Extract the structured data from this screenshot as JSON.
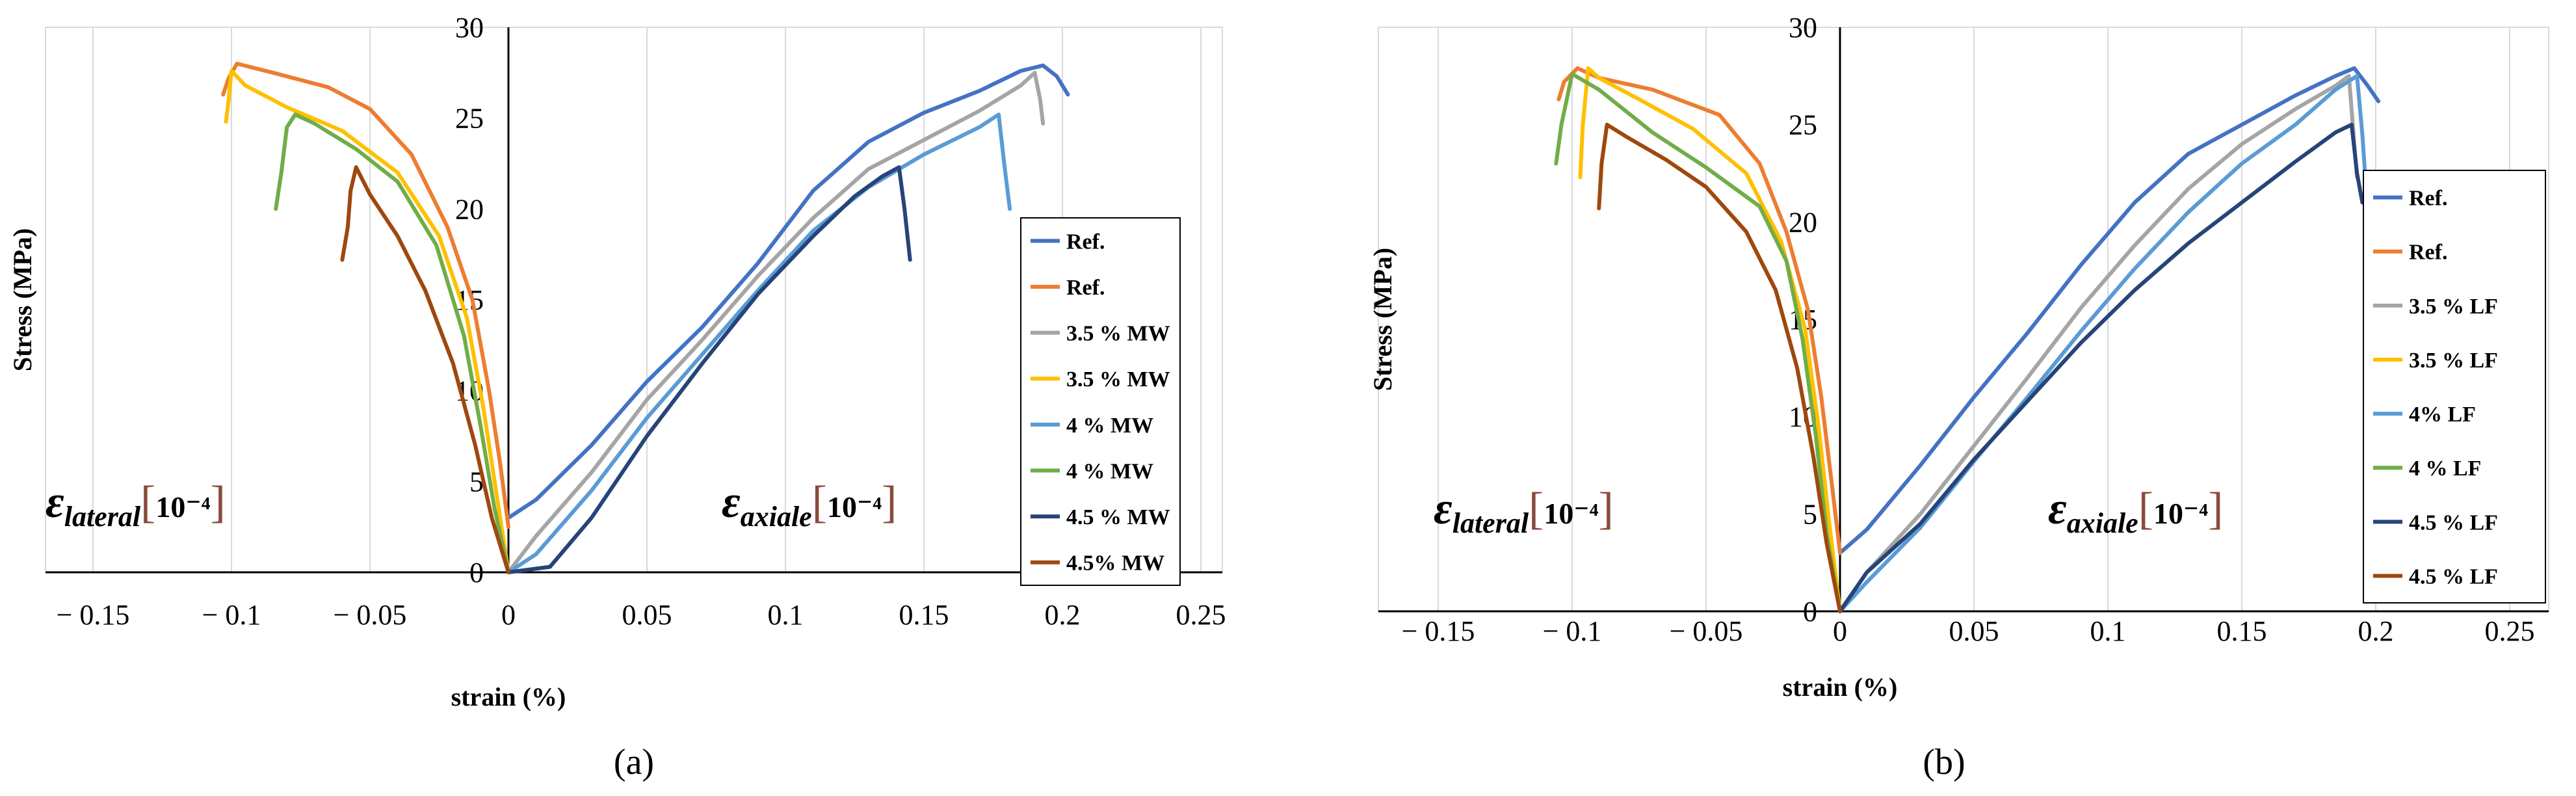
{
  "chart_data": [
    {
      "panel": "(a)",
      "type": "line",
      "xlabel": "strain (%)",
      "ylabel": "Stress (MPa)",
      "xlim": [
        -0.15,
        0.25
      ],
      "ylim": [
        0,
        30
      ],
      "x_ticks": [
        "− 0.15",
        "− 0.1",
        "− 0.05",
        "0",
        "0.05",
        "0.1",
        "0.15",
        "0.2",
        "0.25"
      ],
      "x_tick_values": [
        -0.15,
        -0.1,
        -0.05,
        0,
        0.05,
        0.1,
        0.15,
        0.2,
        0.25
      ],
      "y_ticks": [
        0,
        5,
        10,
        15,
        20,
        25,
        30
      ],
      "grid": "vertical",
      "annotations": {
        "lateral": {
          "symbol": "ε",
          "sub": "lateral",
          "exponent": "10⁻⁴",
          "lb": "[",
          "rb": "]"
        },
        "axial": {
          "symbol": "ε",
          "sub": "axiale",
          "exponent": "10⁻⁴",
          "lb": "[",
          "rb": "]"
        }
      },
      "legend_position": "right",
      "series": [
        {
          "name": "Ref.",
          "color": "#4472c4",
          "points": [
            [
              0.0,
              3.0
            ],
            [
              0.01,
              4.0
            ],
            [
              0.03,
              7.0
            ],
            [
              0.05,
              10.5
            ],
            [
              0.07,
              13.5
            ],
            [
              0.09,
              17.0
            ],
            [
              0.11,
              21.0
            ],
            [
              0.13,
              23.7
            ],
            [
              0.15,
              25.3
            ],
            [
              0.17,
              26.5
            ],
            [
              0.185,
              27.6
            ],
            [
              0.193,
              27.9
            ],
            [
              0.198,
              27.3
            ],
            [
              0.202,
              26.3
            ]
          ]
        },
        {
          "name": "Ref.",
          "color": "#ed7d31",
          "points": [
            [
              0.0,
              2.5
            ],
            [
              -0.003,
              6.0
            ],
            [
              -0.007,
              10.0
            ],
            [
              -0.013,
              15.0
            ],
            [
              -0.022,
              19.0
            ],
            [
              -0.035,
              23.0
            ],
            [
              -0.05,
              25.5
            ],
            [
              -0.065,
              26.7
            ],
            [
              -0.085,
              27.5
            ],
            [
              -0.098,
              28.0
            ],
            [
              -0.101,
              27.2
            ],
            [
              -0.103,
              26.3
            ]
          ]
        },
        {
          "name": "3.5 % MW",
          "color": "#a5a5a5",
          "points": [
            [
              0.0,
              0.0
            ],
            [
              0.01,
              2.0
            ],
            [
              0.03,
              5.5
            ],
            [
              0.05,
              9.5
            ],
            [
              0.07,
              12.8
            ],
            [
              0.09,
              16.3
            ],
            [
              0.11,
              19.5
            ],
            [
              0.13,
              22.2
            ],
            [
              0.15,
              23.8
            ],
            [
              0.17,
              25.4
            ],
            [
              0.185,
              26.8
            ],
            [
              0.19,
              27.5
            ],
            [
              0.192,
              26.0
            ],
            [
              0.193,
              24.7
            ]
          ]
        },
        {
          "name": "3.5 % MW",
          "color": "#ffc000",
          "points": [
            [
              0.0,
              0.0
            ],
            [
              -0.004,
              4.0
            ],
            [
              -0.009,
              9.0
            ],
            [
              -0.015,
              14.0
            ],
            [
              -0.025,
              18.5
            ],
            [
              -0.04,
              22.0
            ],
            [
              -0.06,
              24.3
            ],
            [
              -0.08,
              25.6
            ],
            [
              -0.095,
              26.8
            ],
            [
              -0.1,
              27.6
            ],
            [
              -0.101,
              26.0
            ],
            [
              -0.102,
              24.8
            ]
          ]
        },
        {
          "name": "4 % MW",
          "color": "#5b9bd5",
          "points": [
            [
              0.0,
              0.0
            ],
            [
              0.01,
              1.0
            ],
            [
              0.03,
              4.5
            ],
            [
              0.05,
              8.5
            ],
            [
              0.07,
              12.0
            ],
            [
              0.09,
              15.5
            ],
            [
              0.11,
              18.8
            ],
            [
              0.13,
              21.2
            ],
            [
              0.15,
              23.0
            ],
            [
              0.17,
              24.5
            ],
            [
              0.177,
              25.2
            ],
            [
              0.179,
              22.5
            ],
            [
              0.181,
              20.0
            ]
          ]
        },
        {
          "name": "4 % MW",
          "color": "#70ad47",
          "points": [
            [
              0.0,
              0.0
            ],
            [
              -0.005,
              3.5
            ],
            [
              -0.01,
              8.0
            ],
            [
              -0.016,
              13.0
            ],
            [
              -0.026,
              18.0
            ],
            [
              -0.04,
              21.5
            ],
            [
              -0.055,
              23.3
            ],
            [
              -0.07,
              24.7
            ],
            [
              -0.077,
              25.2
            ],
            [
              -0.08,
              24.5
            ],
            [
              -0.082,
              22.0
            ],
            [
              -0.084,
              20.0
            ]
          ]
        },
        {
          "name": "4.5 % MW",
          "color": "#264478",
          "points": [
            [
              0.0,
              0.0
            ],
            [
              0.015,
              0.3
            ],
            [
              0.03,
              3.0
            ],
            [
              0.05,
              7.5
            ],
            [
              0.07,
              11.5
            ],
            [
              0.09,
              15.3
            ],
            [
              0.11,
              18.5
            ],
            [
              0.125,
              20.7
            ],
            [
              0.135,
              21.8
            ],
            [
              0.141,
              22.3
            ],
            [
              0.143,
              20.0
            ],
            [
              0.145,
              17.2
            ]
          ]
        },
        {
          "name": "4.5% MW",
          "color": "#9e480e",
          "points": [
            [
              0.0,
              0.0
            ],
            [
              -0.006,
              3.0
            ],
            [
              -0.012,
              7.0
            ],
            [
              -0.02,
              11.5
            ],
            [
              -0.03,
              15.5
            ],
            [
              -0.04,
              18.5
            ],
            [
              -0.05,
              20.8
            ],
            [
              -0.055,
              22.3
            ],
            [
              -0.057,
              21.0
            ],
            [
              -0.058,
              19.0
            ],
            [
              -0.06,
              17.2
            ]
          ]
        }
      ]
    },
    {
      "panel": "(b)",
      "type": "line",
      "xlabel": "strain (%)",
      "ylabel": "Stress (MPa)",
      "xlim": [
        -0.15,
        0.25
      ],
      "ylim": [
        0,
        30
      ],
      "x_ticks": [
        "− 0.15",
        "− 0.1",
        "− 0.05",
        "0",
        "0.05",
        "0.1",
        "0.15",
        "0.2",
        "0.25"
      ],
      "x_tick_values": [
        -0.15,
        -0.1,
        -0.05,
        0,
        0.05,
        0.1,
        0.15,
        0.2,
        0.25
      ],
      "y_ticks": [
        0,
        5,
        10,
        15,
        20,
        25,
        30
      ],
      "grid": "vertical",
      "annotations": {
        "lateral": {
          "symbol": "ε",
          "sub": "lateral",
          "exponent": "10⁻⁴",
          "lb": "[",
          "rb": "]"
        },
        "axial": {
          "symbol": "ε",
          "sub": "axiale",
          "exponent": "10⁻⁴",
          "lb": "[",
          "rb": "]"
        }
      },
      "legend_position": "right",
      "series": [
        {
          "name": "Ref.",
          "color": "#4472c4",
          "points": [
            [
              0.0,
              3.0
            ],
            [
              0.01,
              4.2
            ],
            [
              0.03,
              7.5
            ],
            [
              0.05,
              11.0
            ],
            [
              0.07,
              14.3
            ],
            [
              0.09,
              17.8
            ],
            [
              0.11,
              21.0
            ],
            [
              0.13,
              23.5
            ],
            [
              0.15,
              25.0
            ],
            [
              0.17,
              26.5
            ],
            [
              0.185,
              27.5
            ],
            [
              0.192,
              27.9
            ],
            [
              0.197,
              27.0
            ],
            [
              0.201,
              26.2
            ]
          ]
        },
        {
          "name": "Ref.",
          "color": "#ed7d31",
          "points": [
            [
              0.0,
              3.0
            ],
            [
              -0.003,
              6.5
            ],
            [
              -0.007,
              11.0
            ],
            [
              -0.012,
              15.5
            ],
            [
              -0.02,
              19.5
            ],
            [
              -0.03,
              23.0
            ],
            [
              -0.045,
              25.5
            ],
            [
              -0.07,
              26.8
            ],
            [
              -0.09,
              27.4
            ],
            [
              -0.098,
              27.9
            ],
            [
              -0.103,
              27.2
            ],
            [
              -0.105,
              26.3
            ]
          ]
        },
        {
          "name": "3.5 % LF",
          "color": "#a5a5a5",
          "points": [
            [
              0.0,
              0.0
            ],
            [
              0.01,
              2.0
            ],
            [
              0.03,
              5.0
            ],
            [
              0.05,
              8.5
            ],
            [
              0.07,
              12.0
            ],
            [
              0.09,
              15.6
            ],
            [
              0.11,
              18.8
            ],
            [
              0.13,
              21.7
            ],
            [
              0.15,
              24.0
            ],
            [
              0.17,
              25.8
            ],
            [
              0.185,
              27.0
            ],
            [
              0.19,
              27.5
            ],
            [
              0.192,
              24.0
            ],
            [
              0.193,
              22.3
            ]
          ]
        },
        {
          "name": "3.5 % LF",
          "color": "#ffc000",
          "points": [
            [
              0.0,
              0.0
            ],
            [
              -0.004,
              4.5
            ],
            [
              -0.008,
              9.5
            ],
            [
              -0.013,
              14.5
            ],
            [
              -0.022,
              19.0
            ],
            [
              -0.035,
              22.5
            ],
            [
              -0.055,
              24.8
            ],
            [
              -0.075,
              26.3
            ],
            [
              -0.09,
              27.4
            ],
            [
              -0.094,
              27.9
            ],
            [
              -0.096,
              25.0
            ],
            [
              -0.097,
              22.3
            ]
          ]
        },
        {
          "name": "4% LF",
          "color": "#5b9bd5",
          "points": [
            [
              0.0,
              0.0
            ],
            [
              0.01,
              1.5
            ],
            [
              0.03,
              4.3
            ],
            [
              0.05,
              7.7
            ],
            [
              0.07,
              11.0
            ],
            [
              0.09,
              14.4
            ],
            [
              0.11,
              17.6
            ],
            [
              0.13,
              20.5
            ],
            [
              0.15,
              23.0
            ],
            [
              0.17,
              25.0
            ],
            [
              0.185,
              26.8
            ],
            [
              0.193,
              27.5
            ],
            [
              0.195,
              24.5
            ],
            [
              0.196,
              22.5
            ]
          ]
        },
        {
          "name": "4 % LF",
          "color": "#70ad47",
          "points": [
            [
              0.0,
              0.0
            ],
            [
              -0.005,
              4.0
            ],
            [
              -0.009,
              9.0
            ],
            [
              -0.014,
              14.0
            ],
            [
              -0.02,
              18.0
            ],
            [
              -0.03,
              20.8
            ],
            [
              -0.05,
              22.8
            ],
            [
              -0.07,
              24.6
            ],
            [
              -0.09,
              26.8
            ],
            [
              -0.1,
              27.6
            ],
            [
              -0.104,
              25.0
            ],
            [
              -0.106,
              23.0
            ]
          ]
        },
        {
          "name": "4.5 % LF",
          "color": "#264478",
          "points": [
            [
              0.0,
              0.0
            ],
            [
              0.01,
              2.0
            ],
            [
              0.03,
              4.5
            ],
            [
              0.05,
              7.8
            ],
            [
              0.07,
              10.8
            ],
            [
              0.09,
              13.8
            ],
            [
              0.11,
              16.5
            ],
            [
              0.13,
              18.9
            ],
            [
              0.15,
              21.0
            ],
            [
              0.17,
              23.1
            ],
            [
              0.185,
              24.6
            ],
            [
              0.191,
              25.0
            ],
            [
              0.193,
              22.5
            ],
            [
              0.195,
              21.0
            ]
          ]
        },
        {
          "name": "4.5 % LF",
          "color": "#9e480e",
          "points": [
            [
              0.0,
              0.0
            ],
            [
              -0.005,
              3.5
            ],
            [
              -0.01,
              8.0
            ],
            [
              -0.016,
              12.5
            ],
            [
              -0.024,
              16.5
            ],
            [
              -0.035,
              19.5
            ],
            [
              -0.05,
              21.8
            ],
            [
              -0.065,
              23.2
            ],
            [
              -0.08,
              24.4
            ],
            [
              -0.087,
              25.0
            ],
            [
              -0.089,
              23.0
            ],
            [
              -0.09,
              20.7
            ]
          ]
        }
      ]
    }
  ]
}
